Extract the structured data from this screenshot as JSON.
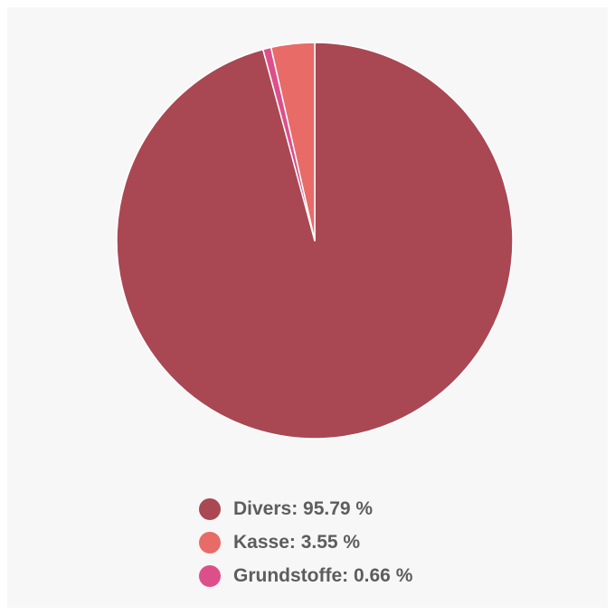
{
  "chart_data": {
    "type": "pie",
    "title": "",
    "slices": [
      {
        "label": "Divers: 95.79 %",
        "value": 95.79,
        "color": "#a94852"
      },
      {
        "label": "Kasse: 3.55 %",
        "value": 3.55,
        "color": "#e86b67"
      },
      {
        "label": "Grundstoffe: 0.66 %",
        "value": 0.66,
        "color": "#dc4f8b"
      }
    ],
    "legend_position": "bottom",
    "start_angle": "top",
    "direction": "counterclockwise-after-first"
  }
}
